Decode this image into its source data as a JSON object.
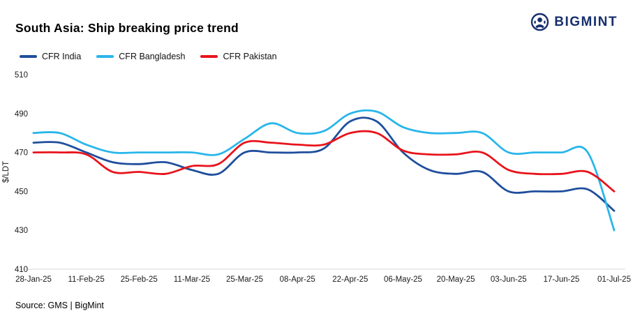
{
  "header": {
    "title": "South Asia: Ship breaking price trend",
    "brand": "BIGMINT",
    "brand_color": "#172f6c"
  },
  "legend": [
    {
      "label": "CFR India",
      "color": "#1f4e9c"
    },
    {
      "label": "CFR Bangladesh",
      "color": "#29b6ea"
    },
    {
      "label": "CFR Pakistan",
      "color": "#e8131b"
    }
  ],
  "chart_data": {
    "type": "line",
    "title": "South Asia: Ship breaking price trend",
    "xlabel": "",
    "ylabel": "$/LDT",
    "ylim": [
      410,
      510
    ],
    "yticks": [
      410,
      430,
      450,
      470,
      490,
      510
    ],
    "grid": false,
    "legend_position": "top-left",
    "x": [
      "28-Jan-25",
      "04-Feb-25",
      "11-Feb-25",
      "18-Feb-25",
      "25-Feb-25",
      "04-Mar-25",
      "11-Mar-25",
      "18-Mar-25",
      "25-Mar-25",
      "01-Apr-25",
      "08-Apr-25",
      "15-Apr-25",
      "22-Apr-25",
      "29-Apr-25",
      "06-May-25",
      "13-May-25",
      "20-May-25",
      "27-May-25",
      "03-Jun-25",
      "10-Jun-25",
      "17-Jun-25",
      "24-Jun-25",
      "01-Jul-25"
    ],
    "xtick_labels": [
      "28-Jan-25",
      "11-Feb-25",
      "25-Feb-25",
      "11-Mar-25",
      "25-Mar-25",
      "08-Apr-25",
      "22-Apr-25",
      "06-May-25",
      "20-May-25",
      "03-Jun-25",
      "17-Jun-25",
      "01-Jul-25"
    ],
    "series": [
      {
        "name": "CFR India",
        "color": "#1f4e9c",
        "values": [
          475,
          475,
          470,
          465,
          464,
          465,
          461,
          459,
          470,
          470,
          470,
          472,
          486,
          486,
          470,
          461,
          459,
          460,
          450,
          450,
          450,
          451,
          440
        ]
      },
      {
        "name": "CFR Bangladesh",
        "color": "#29b6ea",
        "values": [
          480,
          480,
          474,
          470,
          470,
          470,
          470,
          469,
          477,
          485,
          480,
          481,
          490,
          491,
          483,
          480,
          480,
          480,
          470,
          470,
          470,
          470,
          430
        ]
      },
      {
        "name": "CFR Pakistan",
        "color": "#e8131b",
        "values": [
          470,
          470,
          469,
          460,
          460,
          459,
          463,
          464,
          475,
          475,
          474,
          474,
          480,
          480,
          471,
          469,
          469,
          470,
          461,
          459,
          459,
          460,
          450
        ]
      }
    ]
  },
  "footer": {
    "source": "Source: GMS | BigMint"
  }
}
